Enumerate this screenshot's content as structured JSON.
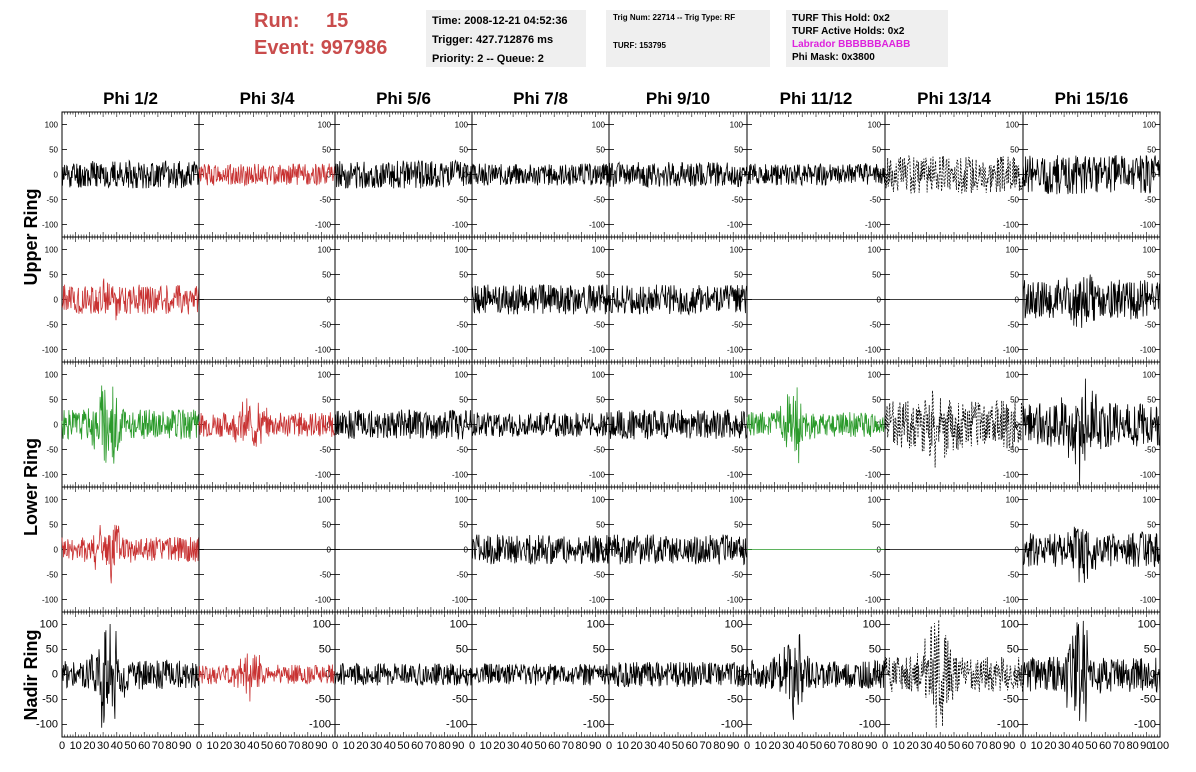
{
  "header": {
    "run_label": "Run:",
    "run_value": "15",
    "event_label": "Event:",
    "event_value": "997986",
    "time": "Time: 2008-12-21 04:52:36",
    "trigger": "Trigger: 427.712876 ms",
    "priority": "Priority: 2 -- Queue: 2",
    "trig_line": "Trig Num: 22714 -- Trig Type: RF",
    "turf_line": "TURF: 153795",
    "turf_hold": "TURF This Hold: 0x2",
    "turf_active": "TURF Active Holds: 0x2",
    "labrador": "Labrador BBBBBBAABB",
    "phi_mask": "Phi Mask: 0x3800"
  },
  "colors": {
    "run_text": "#c94c4c",
    "labrador_text": "#dd22dd",
    "trace_black": "#000000",
    "trace_red": "#c83232",
    "trace_green": "#2a9a2a",
    "box_bg": "#efefef"
  },
  "chart_data": {
    "type": "line",
    "columns": [
      "Phi 1/2",
      "Phi 3/4",
      "Phi 5/6",
      "Phi 7/8",
      "Phi 9/10",
      "Phi 11/12",
      "Phi 13/14",
      "Phi 15/16"
    ],
    "ring_labels": [
      "Upper Ring",
      "Lower Ring",
      "Nadir Ring"
    ],
    "rows": 5,
    "xlim": [
      0,
      100
    ],
    "ylim": [
      -125,
      125
    ],
    "x_tick_labels": [
      "0",
      "10",
      "20",
      "30",
      "40",
      "50",
      "60",
      "70",
      "80",
      "90",
      "100"
    ],
    "y_ticks": [
      -100,
      -50,
      0,
      50,
      100
    ],
    "grid": false,
    "panels": [
      {
        "row": 0,
        "col": 0,
        "color": "black",
        "amp": 28,
        "seed": 11,
        "burst": 0
      },
      {
        "row": 0,
        "col": 1,
        "color": "red",
        "amp": 22,
        "seed": 12,
        "burst": 0
      },
      {
        "row": 0,
        "col": 2,
        "color": "black",
        "amp": 28,
        "seed": 13,
        "burst": 0
      },
      {
        "row": 0,
        "col": 3,
        "color": "black",
        "amp": 22,
        "seed": 14,
        "burst": 0
      },
      {
        "row": 0,
        "col": 4,
        "color": "black",
        "amp": 25,
        "seed": 15,
        "burst": 0
      },
      {
        "row": 0,
        "col": 5,
        "color": "black",
        "amp": 22,
        "seed": 16,
        "burst": 0
      },
      {
        "row": 0,
        "col": 6,
        "color": "black",
        "amp": 38,
        "seed": 17,
        "burst": 0,
        "dashed": true
      },
      {
        "row": 0,
        "col": 7,
        "color": "black",
        "amp": 40,
        "seed": 18,
        "burst": 0
      },
      {
        "row": 1,
        "col": 0,
        "color": "red",
        "amp": 30,
        "seed": 21,
        "burst": 18
      },
      {
        "row": 1,
        "col": 1,
        "color": "black",
        "amp": 0,
        "seed": 22,
        "burst": 0,
        "flat": true
      },
      {
        "row": 1,
        "col": 2,
        "color": "black",
        "amp": 0,
        "seed": 23,
        "burst": 0,
        "flat": true
      },
      {
        "row": 1,
        "col": 3,
        "color": "black",
        "amp": 30,
        "seed": 24,
        "burst": 0
      },
      {
        "row": 1,
        "col": 4,
        "color": "black",
        "amp": 30,
        "seed": 25,
        "burst": 0
      },
      {
        "row": 1,
        "col": 5,
        "color": "black",
        "amp": 0,
        "seed": 26,
        "burst": 0,
        "flat": true
      },
      {
        "row": 1,
        "col": 6,
        "color": "black",
        "amp": 0,
        "seed": 27,
        "burst": 0,
        "flat": true
      },
      {
        "row": 1,
        "col": 7,
        "color": "black",
        "amp": 40,
        "seed": 28,
        "burst": 25
      },
      {
        "row": 2,
        "col": 0,
        "color": "green",
        "amp": 30,
        "seed": 31,
        "burst": 55
      },
      {
        "row": 2,
        "col": 1,
        "color": "red",
        "amp": 25,
        "seed": 32,
        "burst": 25
      },
      {
        "row": 2,
        "col": 2,
        "color": "black",
        "amp": 30,
        "seed": 33,
        "burst": 0
      },
      {
        "row": 2,
        "col": 3,
        "color": "black",
        "amp": 25,
        "seed": 34,
        "burst": 0
      },
      {
        "row": 2,
        "col": 4,
        "color": "black",
        "amp": 30,
        "seed": 35,
        "burst": 0
      },
      {
        "row": 2,
        "col": 5,
        "color": "green",
        "amp": 25,
        "seed": 36,
        "burst": 40
      },
      {
        "row": 2,
        "col": 6,
        "color": "black",
        "amp": 50,
        "seed": 37,
        "burst": 35,
        "dashed": true
      },
      {
        "row": 2,
        "col": 7,
        "color": "black",
        "amp": 45,
        "seed": 38,
        "burst": 50
      },
      {
        "row": 3,
        "col": 0,
        "color": "red",
        "amp": 25,
        "seed": 41,
        "burst": 35
      },
      {
        "row": 3,
        "col": 1,
        "color": "black",
        "amp": 0,
        "seed": 42,
        "burst": 0,
        "flat": true
      },
      {
        "row": 3,
        "col": 2,
        "color": "black",
        "amp": 0,
        "seed": 43,
        "burst": 0,
        "flat": true
      },
      {
        "row": 3,
        "col": 3,
        "color": "black",
        "amp": 30,
        "seed": 44,
        "burst": 0
      },
      {
        "row": 3,
        "col": 4,
        "color": "black",
        "amp": 30,
        "seed": 45,
        "burst": 0
      },
      {
        "row": 3,
        "col": 5,
        "color": "green",
        "amp": 0,
        "seed": 46,
        "burst": 0,
        "flat": true
      },
      {
        "row": 3,
        "col": 6,
        "color": "black",
        "amp": 0,
        "seed": 47,
        "burst": 0,
        "flat": true
      },
      {
        "row": 3,
        "col": 7,
        "color": "black",
        "amp": 35,
        "seed": 48,
        "burst": 30
      },
      {
        "row": 4,
        "col": 0,
        "color": "black",
        "amp": 30,
        "seed": 51,
        "burst": 65
      },
      {
        "row": 4,
        "col": 1,
        "color": "red",
        "amp": 20,
        "seed": 52,
        "burst": 25
      },
      {
        "row": 4,
        "col": 2,
        "color": "black",
        "amp": 22,
        "seed": 53,
        "burst": 0
      },
      {
        "row": 4,
        "col": 3,
        "color": "black",
        "amp": 22,
        "seed": 54,
        "burst": 0
      },
      {
        "row": 4,
        "col": 4,
        "color": "black",
        "amp": 25,
        "seed": 55,
        "burst": 0
      },
      {
        "row": 4,
        "col": 5,
        "color": "black",
        "amp": 28,
        "seed": 56,
        "burst": 45
      },
      {
        "row": 4,
        "col": 6,
        "color": "black",
        "amp": 35,
        "seed": 57,
        "burst": 60,
        "dashed": true
      },
      {
        "row": 4,
        "col": 7,
        "color": "black",
        "amp": 35,
        "seed": 58,
        "burst": 65
      }
    ]
  }
}
